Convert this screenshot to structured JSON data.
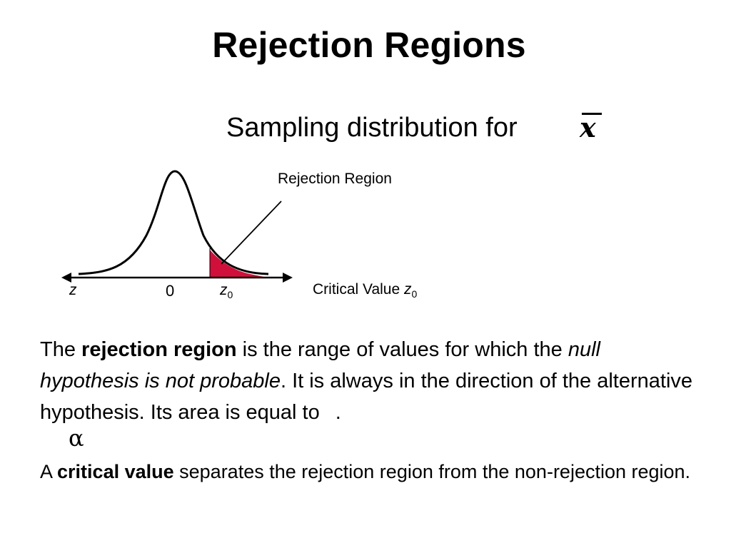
{
  "slide": {
    "title": "Rejection Regions",
    "subtitle": "Sampling distribution for",
    "xbar_symbol": "x"
  },
  "figure": {
    "annotation_label": "Rejection Region",
    "axis_label_z": "z",
    "axis_label_zero": "0",
    "axis_label_z0": "z",
    "axis_label_z0_sub": "0",
    "critical_value_label": "Critical Value ",
    "critical_value_var": "z",
    "critical_value_sub": "0",
    "shade_color": "#d0103a",
    "curve_color": "#000000"
  },
  "body": {
    "p1_part1": "The ",
    "p1_bold": "rejection region",
    "p1_part2": " is the range of values for which the ",
    "p1_italic": "null hypothesis is not probable",
    "p1_part3": ". It is always in the direction of the alternative hypothesis. Its area is equal to ",
    "p1_end": ".",
    "alpha_symbol": "α",
    "p2_part1": "A ",
    "p2_bold": "critical value",
    "p2_part2": " separates the rejection region from the non-rejection region."
  }
}
